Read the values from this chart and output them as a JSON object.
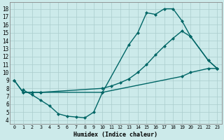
{
  "xlabel": "Humidex (Indice chaleur)",
  "bg_color": "#cceaea",
  "grid_color": "#aacccc",
  "line_color": "#006666",
  "xlim": [
    -0.5,
    23.5
  ],
  "ylim": [
    3.5,
    18.8
  ],
  "xticks": [
    0,
    1,
    2,
    3,
    4,
    5,
    6,
    7,
    8,
    9,
    10,
    11,
    12,
    13,
    14,
    15,
    16,
    17,
    18,
    19,
    20,
    21,
    22,
    23
  ],
  "yticks": [
    4,
    5,
    6,
    7,
    8,
    9,
    10,
    11,
    12,
    13,
    14,
    15,
    16,
    17,
    18
  ],
  "curve1_x": [
    0,
    1,
    2,
    3,
    10,
    13,
    14,
    15,
    16,
    17,
    18,
    19,
    20,
    22,
    23
  ],
  "curve1_y": [
    9.0,
    7.5,
    7.5,
    7.5,
    7.5,
    13.5,
    15.0,
    17.5,
    17.3,
    18.0,
    18.0,
    16.5,
    14.5,
    11.5,
    10.5
  ],
  "curve2_x": [
    0,
    1,
    2,
    3,
    10,
    11,
    12,
    13,
    14,
    15,
    16,
    17,
    18,
    19,
    20,
    22,
    23
  ],
  "curve2_y": [
    9.0,
    7.5,
    7.5,
    7.5,
    8.0,
    8.3,
    8.7,
    9.2,
    10.0,
    11.0,
    12.2,
    13.3,
    14.3,
    15.2,
    14.5,
    11.5,
    10.5
  ],
  "curve3_x": [
    1,
    2,
    3,
    4,
    5,
    6,
    7,
    8,
    9,
    10,
    19,
    20,
    22,
    23
  ],
  "curve3_y": [
    7.8,
    7.2,
    6.5,
    5.8,
    4.8,
    4.5,
    4.4,
    4.3,
    5.0,
    7.5,
    9.5,
    10.0,
    10.5,
    10.5
  ],
  "figsize": [
    3.2,
    2.0
  ],
  "dpi": 100
}
